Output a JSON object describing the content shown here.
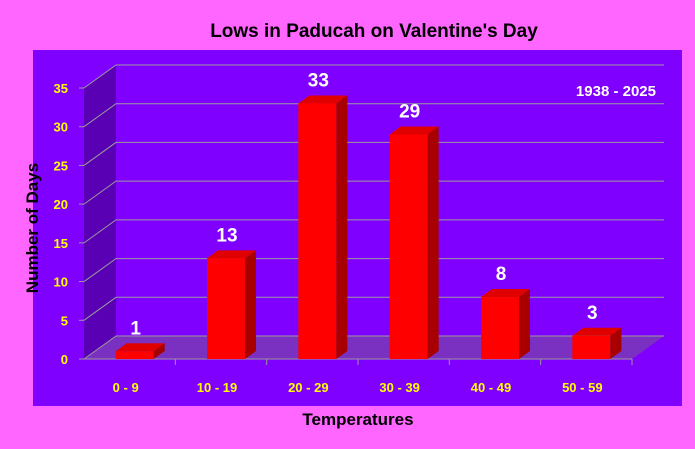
{
  "colors": {
    "background": "#ff66ff",
    "plot_area": "#8000ff",
    "wall": "#5a00b4",
    "floor": "#7a30c0",
    "bar_front": "#ff0000",
    "bar_top": "#e00000",
    "bar_side": "#a80000",
    "tick_label": "#ffff00",
    "data_label": "#ffffff",
    "title": "#000000"
  },
  "chart_data": {
    "type": "bar",
    "title": "Lows in Paducah on Valentine's Day",
    "xlabel": "Temperatures",
    "ylabel": "Number of Days",
    "annotation": "1938 - 2025",
    "categories": [
      "0 - 9",
      "10 - 19",
      "20 - 29",
      "30 - 39",
      "40 - 49",
      "50 - 59"
    ],
    "series": [
      {
        "values": [
          1,
          13,
          33,
          29,
          8,
          3
        ]
      }
    ],
    "ylim": [
      0,
      35
    ],
    "yticks": [
      0,
      5,
      10,
      15,
      20,
      25,
      30,
      35
    ],
    "grid": true,
    "data_labels": true,
    "legend": "none"
  }
}
